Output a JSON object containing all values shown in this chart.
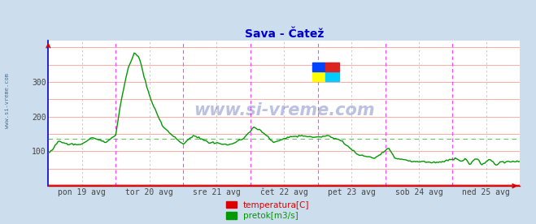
{
  "title": "Sava - Čatež",
  "title_color": "#0000cc",
  "bg_color": "#ccdded",
  "plot_bg_color": "#ffffff",
  "grid_h_color": "#ffaaaa",
  "grid_v_minor_color": "#dddddd",
  "ylabel_left": "",
  "xlabel": "",
  "yticks": [
    100,
    200,
    300
  ],
  "xlabels": [
    "pon 19 avg",
    "tor 20 avg",
    "sre 21 avg",
    "čet 22 avg",
    "pet 23 avg",
    "sob 24 avg",
    "ned 25 avg"
  ],
  "n_points": 336,
  "vline_color_day": "#ff44ff",
  "vline_color_mid": "#aaaaaa",
  "temp_color": "#dd0000",
  "flow_color": "#009900",
  "watermark": "www.si-vreme.com",
  "watermark_color": "#223399",
  "legend_temp": "temperatura[C]",
  "legend_flow": "pretok[m3/s]",
  "ymin": 0,
  "ymax": 420,
  "temp_value": 2.0,
  "avg_line_y": 137,
  "left_spine_color": "#0000cc",
  "bottom_spine_color": "#cc0000",
  "axis_label_color": "#444444",
  "watermark_side": "www.si-vreme.com"
}
